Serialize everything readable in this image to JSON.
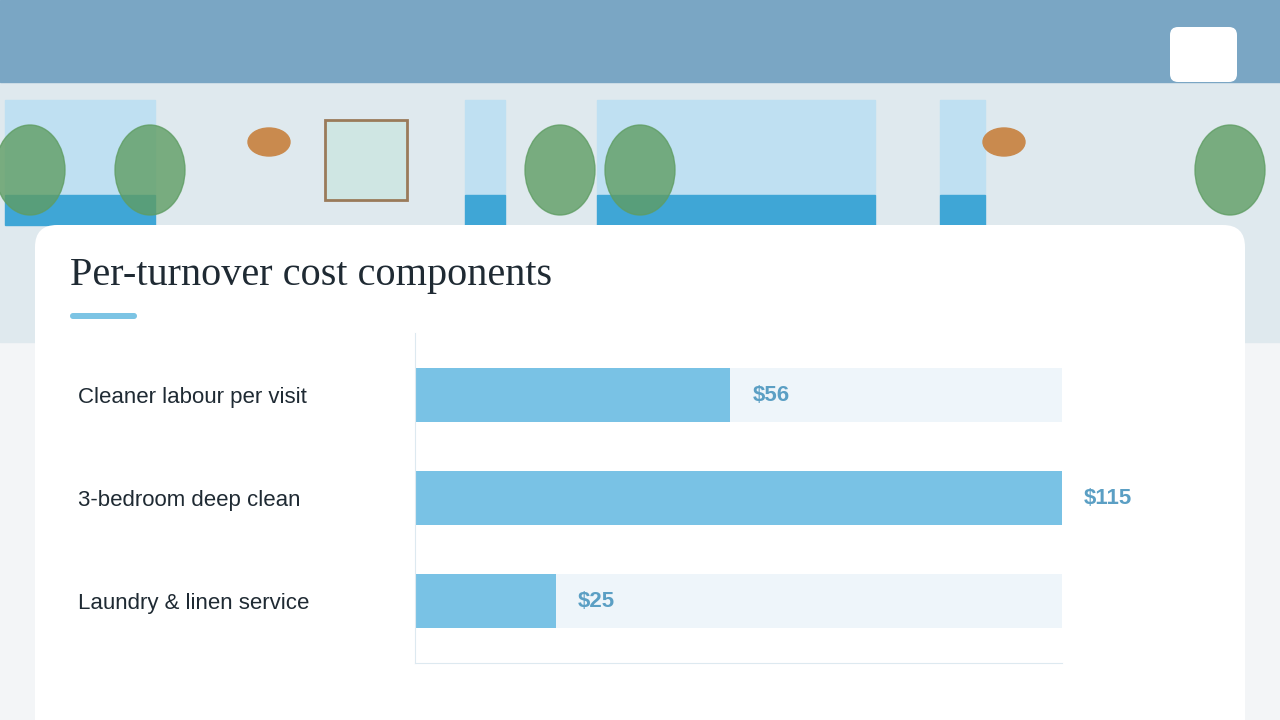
{
  "chart_data": {
    "type": "bar",
    "orientation": "horizontal",
    "title": "Per-turnover cost components",
    "categories": [
      "Cleaner labour per visit",
      "3-bedroom deep clean",
      "Laundry & linen service"
    ],
    "values": [
      56,
      115,
      25
    ],
    "value_labels": [
      "$56",
      "$115",
      "$25"
    ],
    "data_labels": true,
    "tick_labels": "y",
    "color": "#79c2e5",
    "xlim": [
      0,
      115
    ],
    "xticks": []
  }
}
